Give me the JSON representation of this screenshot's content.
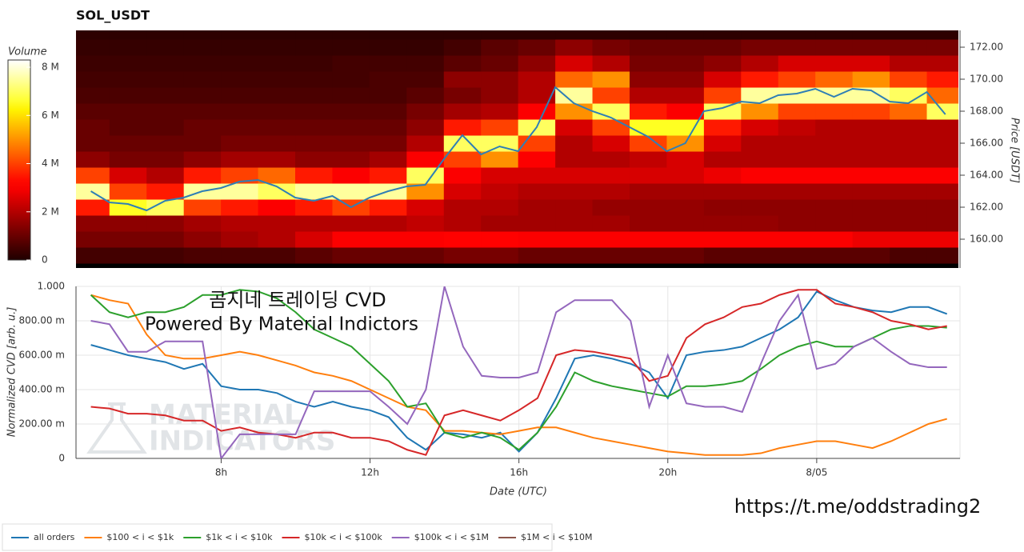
{
  "chart_data": [
    {
      "type": "heatmap",
      "title": "SOL_USDT",
      "ylabel": "Price [USDT]",
      "colorbar_label": "Volume",
      "xlim": [
        4.1,
        27.85
      ],
      "ylim": [
        158.2,
        173.05
      ],
      "yticks": [
        {
          "value": 160,
          "label": "160.00"
        },
        {
          "value": 162,
          "label": "162.00"
        },
        {
          "value": 164,
          "label": "164.00"
        },
        {
          "value": 166,
          "label": "166.00"
        },
        {
          "value": 168,
          "label": "168.00"
        },
        {
          "value": 170,
          "label": "170.00"
        },
        {
          "value": 172,
          "label": "172.00"
        }
      ],
      "clim": [
        0,
        8.3
      ],
      "colorbar_ticks": [
        0,
        {
          "value": 2,
          "label": "2 M"
        },
        {
          "value": 4,
          "label": "4 M"
        },
        {
          "value": 6,
          "label": "6 M"
        },
        {
          "value": 8,
          "label": "8 M"
        }
      ],
      "x_bins": [
        4,
        5,
        6,
        7,
        8,
        9,
        10,
        11,
        12,
        13,
        14,
        15,
        16,
        17,
        18,
        19,
        20,
        21,
        22,
        23,
        24,
        25,
        26,
        27,
        28
      ],
      "y_bins": [
        158.5,
        159.5,
        160.5,
        161.5,
        162.5,
        163.5,
        164.5,
        165.5,
        166.5,
        167.5,
        168.5,
        169.5,
        170.5,
        171.5,
        172.5,
        173.5
      ],
      "z": [
        [
          0.5,
          0.5,
          0.5,
          0.6,
          0.6,
          0.6,
          0.8,
          1.0,
          1.0,
          1.0,
          1.2,
          1.2,
          1.0,
          1.0,
          1.0,
          1.0,
          1.0,
          0.8,
          0.8,
          0.8,
          0.8,
          0.8,
          0.6,
          0.6
        ],
        [
          1.2,
          1.2,
          1.2,
          1.5,
          1.8,
          2.0,
          2.5,
          3.0,
          3.0,
          3.0,
          3.2,
          3.2,
          3.0,
          3.0,
          3.0,
          3.0,
          3.0,
          3.0,
          3.0,
          3.0,
          3.0,
          2.8,
          2.8,
          2.8
        ],
        [
          1.5,
          1.5,
          1.5,
          1.8,
          2.0,
          2.0,
          2.0,
          2.0,
          2.0,
          2.2,
          2.0,
          1.8,
          1.8,
          1.8,
          1.8,
          1.6,
          1.6,
          1.6,
          1.6,
          1.5,
          1.5,
          1.5,
          1.5,
          1.5
        ],
        [
          3.5,
          6.5,
          7.0,
          4.0,
          3.5,
          3.0,
          3.5,
          4.0,
          3.5,
          2.5,
          2.0,
          2.0,
          1.8,
          1.8,
          1.6,
          1.6,
          1.6,
          1.5,
          1.5,
          1.5,
          1.5,
          1.5,
          1.5,
          1.5
        ],
        [
          7.5,
          4.0,
          3.5,
          7.5,
          7.5,
          7.0,
          7.5,
          7.5,
          7.5,
          5.0,
          2.5,
          2.2,
          2.0,
          2.0,
          2.0,
          1.8,
          1.8,
          1.8,
          1.8,
          1.8,
          1.8,
          1.8,
          1.8,
          1.8
        ],
        [
          4.0,
          2.5,
          2.0,
          3.5,
          4.0,
          4.5,
          3.5,
          3.0,
          3.5,
          7.0,
          3.0,
          2.5,
          2.5,
          2.5,
          2.5,
          2.5,
          2.5,
          2.8,
          3.0,
          3.0,
          3.0,
          3.0,
          3.0,
          3.0
        ],
        [
          1.5,
          1.2,
          1.2,
          1.5,
          1.8,
          1.8,
          1.5,
          1.5,
          1.8,
          3.0,
          4.0,
          5.0,
          3.0,
          2.0,
          2.0,
          2.2,
          2.5,
          2.0,
          2.0,
          2.0,
          2.0,
          2.0,
          2.0,
          2.0
        ],
        [
          1.0,
          1.0,
          1.0,
          1.0,
          1.2,
          1.2,
          1.2,
          1.2,
          1.2,
          2.0,
          7.0,
          7.0,
          4.0,
          2.0,
          2.5,
          4.0,
          5.0,
          2.5,
          2.0,
          2.0,
          2.0,
          2.0,
          2.0,
          2.0
        ],
        [
          1.0,
          0.8,
          0.8,
          1.0,
          1.0,
          1.0,
          1.0,
          1.0,
          1.0,
          1.5,
          3.5,
          4.0,
          7.0,
          2.5,
          4.0,
          6.5,
          6.5,
          3.5,
          2.5,
          2.2,
          2.0,
          2.0,
          2.0,
          2.0
        ],
        [
          0.8,
          0.8,
          0.8,
          0.8,
          0.8,
          0.8,
          0.8,
          0.8,
          0.8,
          1.2,
          1.8,
          2.0,
          3.0,
          5.0,
          7.0,
          3.5,
          3.0,
          7.0,
          5.0,
          4.0,
          4.0,
          4.0,
          4.5,
          7.0
        ],
        [
          0.6,
          0.6,
          0.6,
          0.6,
          0.6,
          0.6,
          0.6,
          0.6,
          0.6,
          0.8,
          1.2,
          1.5,
          2.0,
          7.5,
          4.0,
          2.0,
          2.0,
          4.0,
          7.5,
          7.5,
          7.5,
          7.5,
          7.0,
          4.5
        ],
        [
          0.5,
          0.5,
          0.5,
          0.5,
          0.5,
          0.5,
          0.5,
          0.5,
          0.6,
          0.6,
          1.5,
          1.5,
          2.0,
          4.5,
          5.0,
          1.5,
          1.5,
          2.5,
          3.5,
          4.0,
          4.5,
          5.0,
          4.0,
          3.5
        ],
        [
          0.4,
          0.4,
          0.4,
          0.4,
          0.4,
          0.4,
          0.4,
          0.5,
          0.5,
          0.5,
          0.8,
          1.0,
          1.5,
          2.5,
          2.0,
          1.2,
          1.2,
          1.5,
          2.0,
          2.5,
          2.5,
          2.5,
          2.0,
          2.0
        ],
        [
          0.3,
          0.3,
          0.3,
          0.3,
          0.3,
          0.3,
          0.3,
          0.3,
          0.3,
          0.3,
          0.5,
          0.8,
          1.0,
          1.5,
          1.2,
          1.0,
          1.0,
          1.0,
          1.2,
          1.2,
          1.2,
          1.2,
          1.2,
          1.2
        ],
        [
          0.2,
          0.2,
          0.2,
          0.2,
          0.2,
          0.2,
          0.2,
          0.2,
          0.2,
          0.2,
          0.2,
          0.2,
          0.2,
          0.2,
          0.2,
          0.2,
          0.2,
          0.2,
          0.2,
          0.2,
          0.2,
          0.2,
          0.2,
          0.2
        ]
      ],
      "line": {
        "color": "#2f7fb5",
        "x": [
          4.5,
          5,
          5.5,
          6,
          6.5,
          7,
          7.5,
          8,
          8.5,
          9,
          9.5,
          10,
          10.5,
          11,
          11.5,
          12,
          12.5,
          13,
          13.5,
          14,
          14.5,
          15,
          15.5,
          16,
          16.5,
          17,
          17.5,
          18,
          18.5,
          19,
          19.5,
          20,
          20.5,
          21,
          21.5,
          22,
          22.5,
          23,
          23.5,
          24,
          24.5,
          25,
          25.5,
          26,
          26.5,
          27,
          27.5
        ],
        "values": [
          163.0,
          162.3,
          162.2,
          161.8,
          162.4,
          162.6,
          163.0,
          163.2,
          163.6,
          163.7,
          163.3,
          162.6,
          162.4,
          162.7,
          162.0,
          162.6,
          163.0,
          163.3,
          163.4,
          165.0,
          166.5,
          165.3,
          165.8,
          165.5,
          167.0,
          169.5,
          168.5,
          168.0,
          167.6,
          167.0,
          166.4,
          165.5,
          166.0,
          168.0,
          168.2,
          168.6,
          168.5,
          169.0,
          169.1,
          169.4,
          168.9,
          169.4,
          169.3,
          168.6,
          168.5,
          169.2,
          167.8
        ]
      }
    },
    {
      "type": "line",
      "xlabel": "Date (UTC)",
      "ylabel": "Normalized CVD [arb. u.]",
      "xlim": [
        4.1,
        27.85
      ],
      "ylim": [
        0,
        1
      ],
      "xticks": [
        {
          "value": 8,
          "label": "8h"
        },
        {
          "value": 12,
          "label": "12h"
        },
        {
          "value": 16,
          "label": "16h"
        },
        {
          "value": 20,
          "label": "20h"
        },
        {
          "value": 24,
          "label": "8/05"
        }
      ],
      "yticks": [
        0,
        {
          "value": 0.2,
          "label": "200.00 m"
        },
        {
          "value": 0.4,
          "label": "400.00 m"
        },
        {
          "value": 0.6,
          "label": "600.00 m"
        },
        {
          "value": 0.8,
          "label": "800.00 m"
        },
        {
          "value": 1,
          "label": "1.000"
        }
      ],
      "grid": true,
      "annotations": [
        "곰지네 트레이딩 CVD",
        "Powered By Material Indictors"
      ],
      "watermark": [
        "MATERIAL",
        "INDICATORS"
      ],
      "x": [
        4.5,
        5,
        5.5,
        6,
        6.5,
        7,
        7.5,
        8,
        8.5,
        9,
        9.5,
        10,
        10.5,
        11,
        11.5,
        12,
        12.5,
        13,
        13.5,
        14,
        14.5,
        15,
        15.5,
        16,
        16.5,
        17,
        17.5,
        18,
        18.5,
        19,
        19.5,
        20,
        20.5,
        21,
        21.5,
        22,
        22.5,
        23,
        23.5,
        24,
        24.5,
        25,
        25.5,
        26,
        26.5,
        27,
        27.5
      ],
      "series": [
        {
          "name": "all orders",
          "color": "#1f77b4",
          "values": [
            0.66,
            0.63,
            0.6,
            0.58,
            0.56,
            0.52,
            0.55,
            0.42,
            0.4,
            0.4,
            0.38,
            0.33,
            0.3,
            0.33,
            0.3,
            0.28,
            0.24,
            0.12,
            0.05,
            0.15,
            0.14,
            0.12,
            0.15,
            0.04,
            0.15,
            0.35,
            0.58,
            0.6,
            0.58,
            0.55,
            0.5,
            0.35,
            0.6,
            0.62,
            0.63,
            0.65,
            0.7,
            0.75,
            0.82,
            0.97,
            0.92,
            0.88,
            0.86,
            0.85,
            0.88,
            0.88,
            0.84
          ]
        },
        {
          "name": "$100 < i < $1k",
          "color": "#ff7f0e",
          "values": [
            0.95,
            0.92,
            0.9,
            0.72,
            0.6,
            0.58,
            0.58,
            0.6,
            0.62,
            0.6,
            0.57,
            0.54,
            0.5,
            0.48,
            0.45,
            0.4,
            0.35,
            0.3,
            0.28,
            0.16,
            0.16,
            0.15,
            0.14,
            0.16,
            0.18,
            0.18,
            0.15,
            0.12,
            0.1,
            0.08,
            0.06,
            0.04,
            0.03,
            0.02,
            0.02,
            0.02,
            0.03,
            0.06,
            0.08,
            0.1,
            0.1,
            0.08,
            0.06,
            0.1,
            0.15,
            0.2,
            0.23
          ]
        },
        {
          "name": "$1k < i < $10k",
          "color": "#2ca02c",
          "values": [
            0.95,
            0.85,
            0.82,
            0.85,
            0.85,
            0.88,
            0.95,
            0.95,
            0.98,
            0.97,
            0.93,
            0.85,
            0.75,
            0.7,
            0.65,
            0.55,
            0.45,
            0.3,
            0.32,
            0.15,
            0.12,
            0.15,
            0.12,
            0.05,
            0.15,
            0.3,
            0.5,
            0.45,
            0.42,
            0.4,
            0.38,
            0.36,
            0.42,
            0.42,
            0.43,
            0.45,
            0.52,
            0.6,
            0.65,
            0.68,
            0.65,
            0.65,
            0.7,
            0.75,
            0.77,
            0.77,
            0.76
          ]
        },
        {
          "name": "$10k < i < $100k",
          "color": "#d62728",
          "values": [
            0.3,
            0.29,
            0.26,
            0.26,
            0.25,
            0.22,
            0.22,
            0.16,
            0.18,
            0.15,
            0.14,
            0.12,
            0.15,
            0.15,
            0.12,
            0.12,
            0.1,
            0.05,
            0.02,
            0.25,
            0.28,
            0.25,
            0.22,
            0.28,
            0.35,
            0.6,
            0.63,
            0.62,
            0.6,
            0.58,
            0.45,
            0.48,
            0.7,
            0.78,
            0.82,
            0.88,
            0.9,
            0.95,
            0.98,
            0.98,
            0.9,
            0.88,
            0.85,
            0.8,
            0.78,
            0.75,
            0.77
          ]
        },
        {
          "name": "$100k < i < $1M",
          "color": "#9467bd",
          "values": [
            0.8,
            0.78,
            0.62,
            0.62,
            0.68,
            0.68,
            0.68,
            0.0,
            0.14,
            0.14,
            0.14,
            0.14,
            0.39,
            0.39,
            0.39,
            0.39,
            0.3,
            0.2,
            0.4,
            1.0,
            0.65,
            0.48,
            0.47,
            0.47,
            0.5,
            0.85,
            0.92,
            0.92,
            0.92,
            0.8,
            0.3,
            0.6,
            0.32,
            0.3,
            0.3,
            0.27,
            0.55,
            0.8,
            0.95,
            0.52,
            0.55,
            0.65,
            0.7,
            0.62,
            0.55,
            0.53,
            0.53
          ]
        },
        {
          "name": "$1M < i < $10M",
          "color": "#8c564b",
          "values": [
            null,
            null,
            null,
            null,
            null,
            null,
            null,
            null,
            null,
            null,
            null,
            null,
            null,
            null,
            null,
            null,
            null,
            null,
            null,
            null,
            null,
            null,
            null,
            null,
            null,
            null,
            null,
            null,
            null,
            null,
            null,
            null,
            null,
            null,
            null,
            null,
            null,
            null,
            null,
            null,
            null,
            null,
            null,
            null,
            null,
            null,
            null
          ]
        }
      ]
    }
  ],
  "footer_link": "https://t.me/oddstrading2"
}
